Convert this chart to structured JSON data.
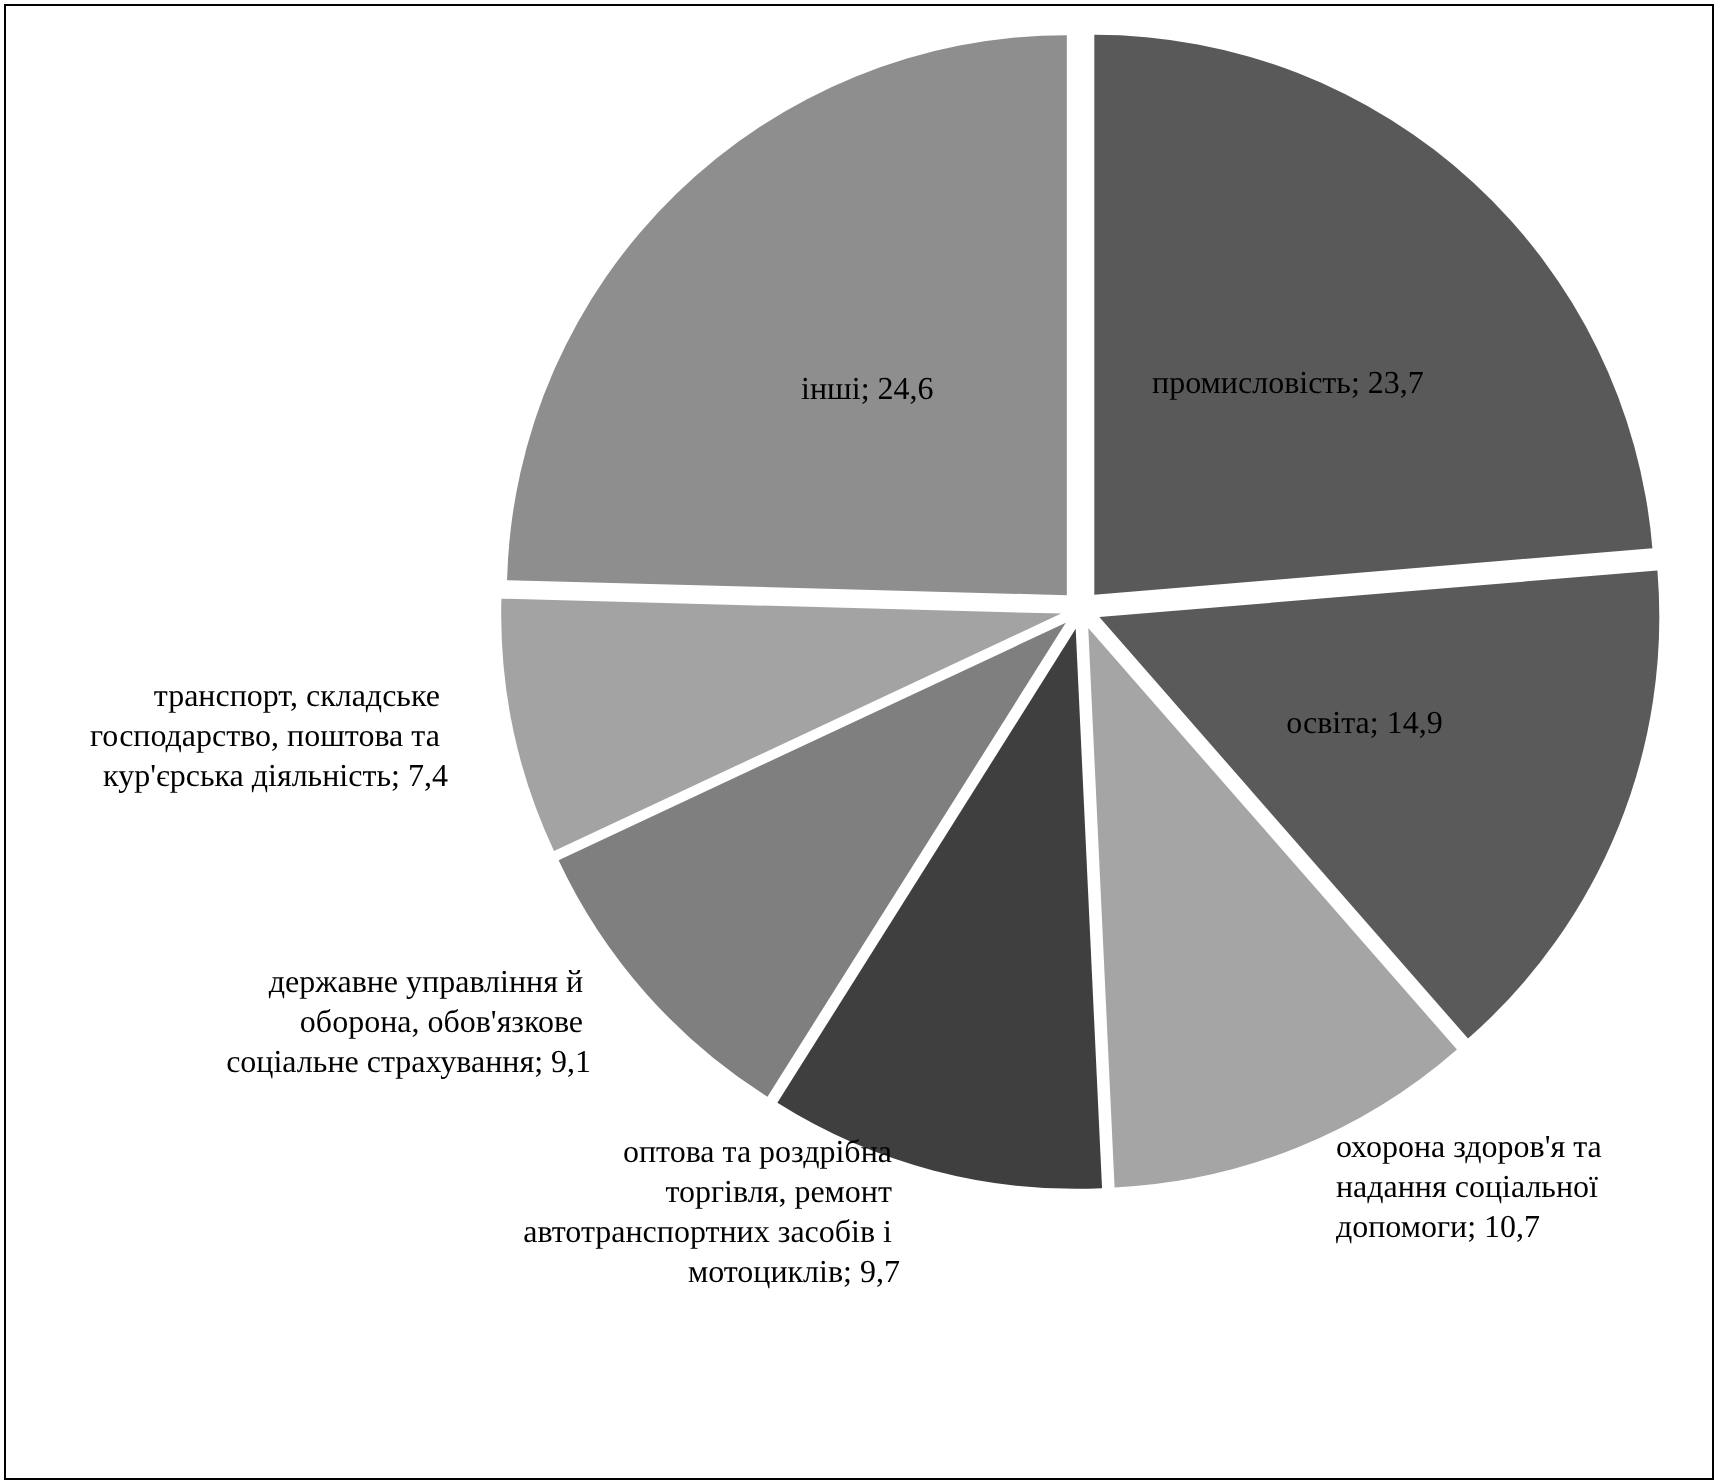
{
  "chart_data": {
    "type": "pie",
    "categories": [
      "промисловість",
      "освіта",
      "охорона здоров'я та надання соціальної допомоги",
      "оптова та роздрібна торгівля, ремонт автотранспортних засобів і мотоциклів",
      "державне управління й оборона, обов'язкове соціальне страхування",
      "транспорт, складське господарство, поштова та кур'єрська діяльність",
      "інші"
    ],
    "values": [
      23.7,
      14.9,
      10.7,
      9.7,
      9.1,
      7.4,
      24.6
    ],
    "value_labels": [
      "23,7",
      "14,9",
      "10,7",
      "9,7",
      "9,1",
      "7,4",
      "24,6"
    ],
    "colors": [
      "#595959",
      "#5a5a5a",
      "#a5a5a5",
      "#3f3f3f",
      "#7f7f7f",
      "#a3a3a3",
      "#8e8e8e"
    ]
  }
}
